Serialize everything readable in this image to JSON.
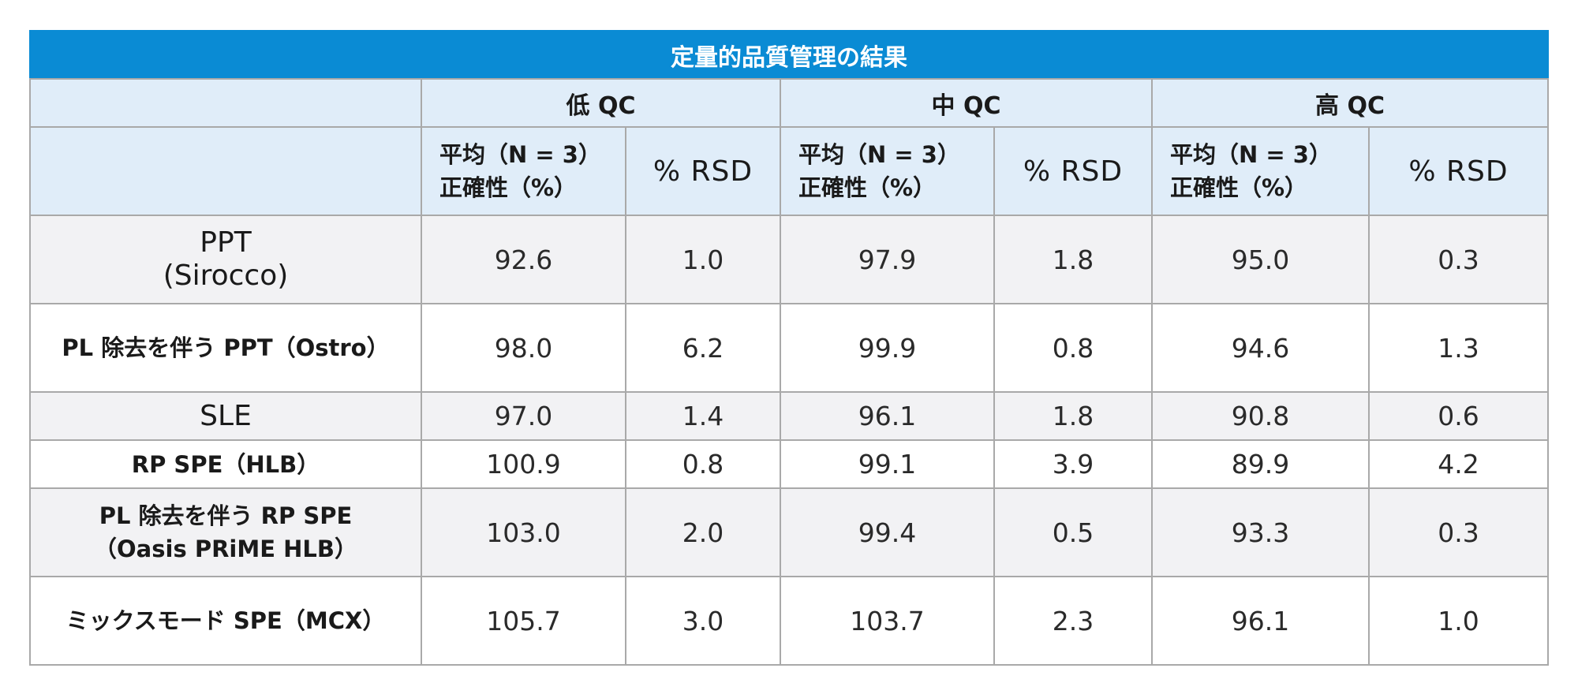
{
  "table": {
    "title": "定量的品質管理の結果",
    "groups": [
      "低 QC",
      "中 QC",
      "高 QC"
    ],
    "subheaders": {
      "mean_line1": "平均（N = 3）",
      "mean_line2": "正確性（%）",
      "rsd": "% RSD"
    },
    "rows": [
      {
        "method_line1": "PPT",
        "method_line2": "(Sirocco)",
        "values": [
          "92.6",
          "1.0",
          "97.9",
          "1.8",
          "95.0",
          "0.3"
        ]
      },
      {
        "method_line1": "PL 除去を伴う PPT（Ostro）",
        "method_line2": "",
        "values": [
          "98.0",
          "6.2",
          "99.9",
          "0.8",
          "94.6",
          "1.3"
        ]
      },
      {
        "method_line1": "SLE",
        "method_line2": "",
        "values": [
          "97.0",
          "1.4",
          "96.1",
          "1.8",
          "90.8",
          "0.6"
        ]
      },
      {
        "method_line1": "RP SPE（HLB）",
        "method_line2": "",
        "values": [
          "100.9",
          "0.8",
          "99.1",
          "3.9",
          "89.9",
          "4.2"
        ]
      },
      {
        "method_line1": "PL 除去を伴う RP SPE",
        "method_line2": "（Oasis PRiME HLB）",
        "values": [
          "103.0",
          "2.0",
          "99.4",
          "0.5",
          "93.3",
          "0.3"
        ]
      },
      {
        "method_line1": "ミックスモード SPE（MCX）",
        "method_line2": "",
        "values": [
          "105.7",
          "3.0",
          "103.7",
          "2.3",
          "96.1",
          "1.0"
        ]
      }
    ],
    "colors": {
      "title_bg": "#0a8bd4",
      "header_bg": "#e0edf9",
      "shaded_row": "#f2f2f4",
      "border": "#a9a9a9"
    }
  }
}
